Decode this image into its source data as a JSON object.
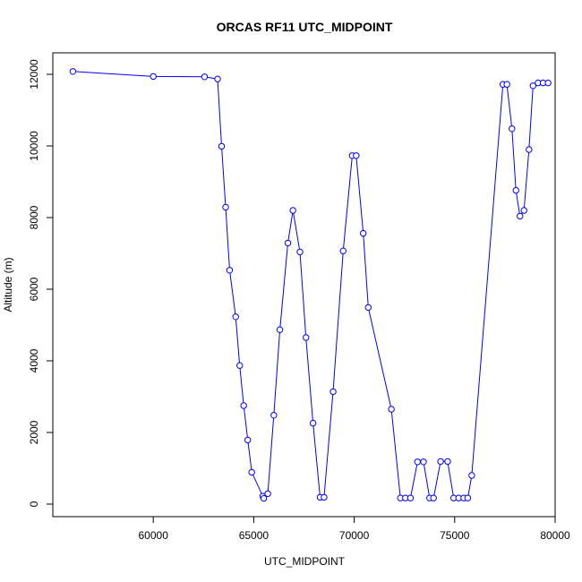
{
  "chart_data": {
    "type": "line",
    "title": "ORCAS RF11 UTC_MIDPOINT",
    "xlabel": "UTC_MIDPOINT",
    "ylabel": "Altitude (m)",
    "xlim": [
      55000,
      80000
    ],
    "ylim": [
      -350,
      12600
    ],
    "xticks": [
      60000,
      65000,
      70000,
      75000,
      80000
    ],
    "yticks": [
      0,
      2000,
      4000,
      6000,
      8000,
      10000,
      12000
    ],
    "grid": false,
    "line_color": "#0000ff",
    "marker": "open-circle",
    "series": [
      {
        "x": [
          56000,
          60000,
          62550,
          63200,
          63400,
          63600,
          63800,
          64100,
          64300,
          64500,
          64700,
          64900,
          65450,
          65500,
          65700,
          66000,
          66300,
          66700,
          66950,
          67300,
          67600,
          67950,
          68300,
          68500,
          68950,
          69450,
          69900,
          70100,
          70450,
          70700,
          71850,
          72300,
          72550,
          72800,
          73150,
          73450,
          73750,
          73950,
          74300,
          74650,
          74950,
          75200,
          75450,
          75650,
          75850,
          77400,
          77600,
          77850,
          78050,
          78250,
          78450,
          78700,
          78900,
          79150,
          79400,
          79650
        ],
        "y": [
          12080,
          11940,
          11930,
          11870,
          9990,
          8290,
          6530,
          5230,
          3870,
          2750,
          1790,
          890,
          220,
          160,
          290,
          2480,
          4870,
          7290,
          8200,
          7040,
          4650,
          2260,
          190,
          190,
          3140,
          7070,
          9730,
          9730,
          7560,
          5490,
          2650,
          170,
          170,
          170,
          1180,
          1180,
          170,
          170,
          1190,
          1190,
          170,
          170,
          170,
          170,
          800,
          11720,
          11720,
          10480,
          8760,
          8040,
          8200,
          9900,
          11680,
          11760,
          11760,
          11760
        ]
      }
    ]
  }
}
